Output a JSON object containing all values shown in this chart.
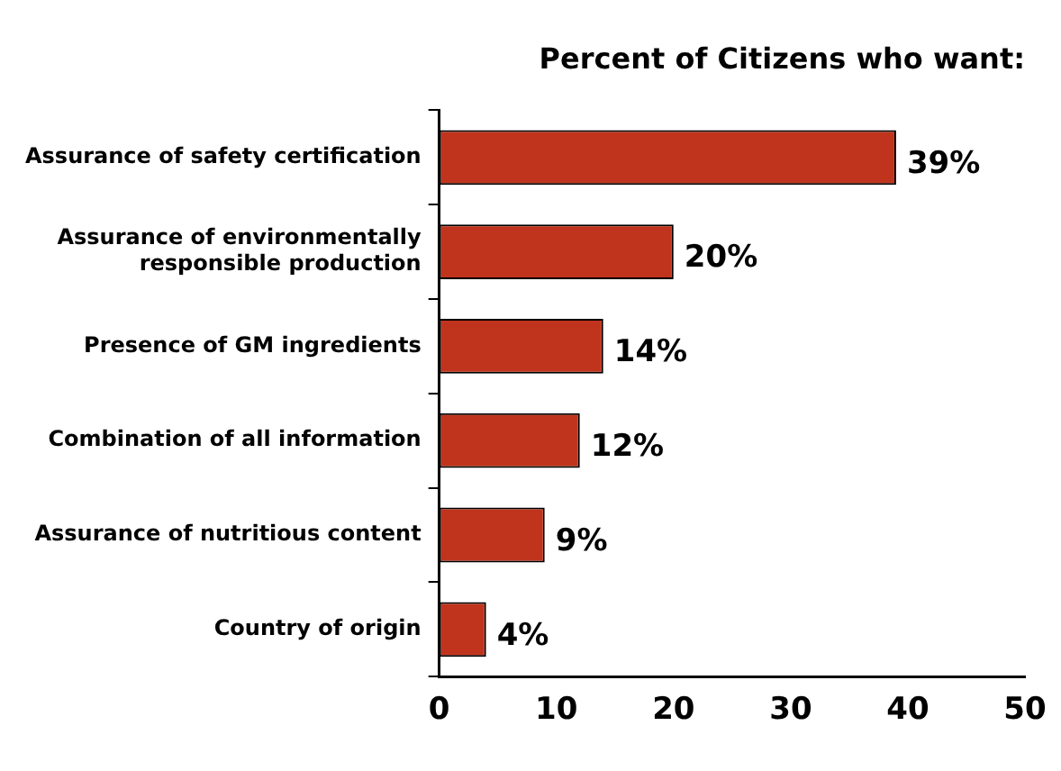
{
  "chart_data": {
    "type": "bar",
    "orientation": "horizontal",
    "title": "Percent of Citizens who want:",
    "categories": [
      "Assurance of safety certification",
      "Assurance of environmentally responsible production",
      "Presence of GM ingredients",
      "Combination of all information",
      "Assurance of nutritious content",
      "Country of origin"
    ],
    "values": [
      39,
      20,
      14,
      12,
      9,
      4
    ],
    "value_labels": [
      "39%",
      "20%",
      "14%",
      "12%",
      "9%",
      "4%"
    ],
    "color": "#c0341d",
    "xlim": [
      0,
      50
    ],
    "xticks": [
      0,
      10,
      20,
      30,
      40,
      50
    ],
    "grid": false,
    "legend": false
  }
}
